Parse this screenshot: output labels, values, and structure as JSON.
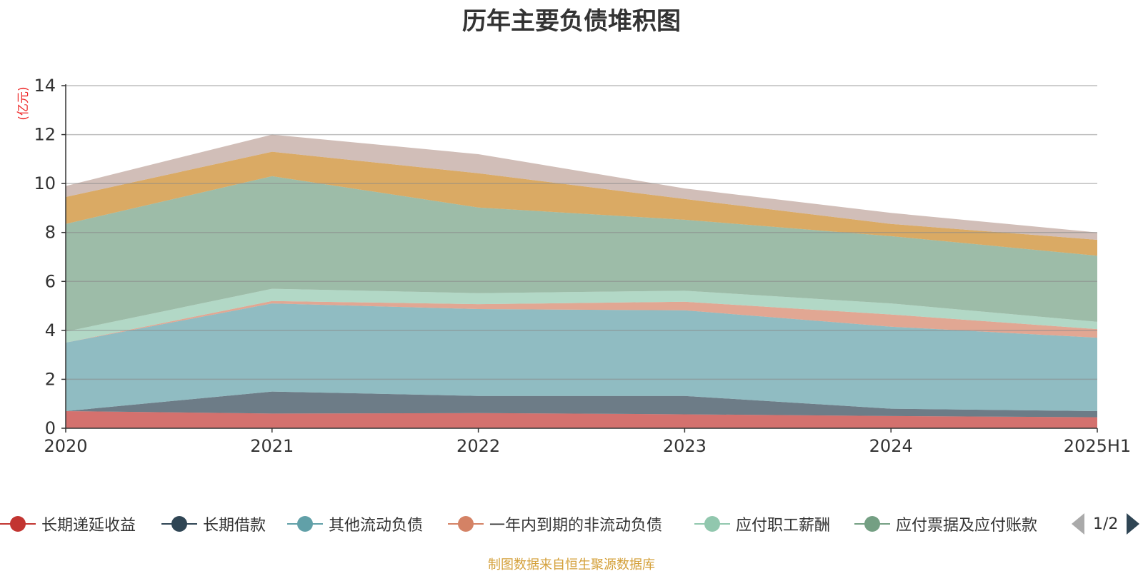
{
  "chart_data": {
    "type": "area",
    "stacked": true,
    "title": "历年主要负债堆积图",
    "ylabel": "(亿元)",
    "xlabel": "",
    "categories": [
      "2020",
      "2021",
      "2022",
      "2023",
      "2024",
      "2025H1"
    ],
    "ylim": [
      0,
      14
    ],
    "yticks": [
      0,
      2,
      4,
      6,
      8,
      10,
      12,
      14
    ],
    "grid": true,
    "series": [
      {
        "name": "长期递延收益",
        "color": "#c23531",
        "values": [
          0.7,
          0.6,
          0.62,
          0.57,
          0.5,
          0.45
        ]
      },
      {
        "name": "长期借款",
        "color": "#2f4554",
        "values": [
          0.0,
          0.9,
          0.7,
          0.75,
          0.3,
          0.25
        ]
      },
      {
        "name": "其他流动负债",
        "color": "#61a0a8",
        "values": [
          2.8,
          3.6,
          3.55,
          3.5,
          3.35,
          3.0
        ]
      },
      {
        "name": "一年内到期的非流动负债",
        "color": "#d48265",
        "values": [
          0.0,
          0.1,
          0.2,
          0.35,
          0.5,
          0.35
        ]
      },
      {
        "name": "应付职工薪酬",
        "color": "#91c7ae",
        "values": [
          0.45,
          0.5,
          0.45,
          0.45,
          0.45,
          0.3
        ]
      },
      {
        "name": "应付票据及应付账款",
        "color": "#749f83",
        "values": [
          4.4,
          4.6,
          3.5,
          2.9,
          2.75,
          2.7
        ]
      },
      {
        "name": "",
        "color": "#ca8622",
        "values": [
          1.1,
          1.0,
          1.4,
          0.85,
          0.5,
          0.65
        ]
      },
      {
        "name": "",
        "color": "#bda29a",
        "values": [
          0.45,
          0.7,
          0.78,
          0.43,
          0.45,
          0.3
        ]
      }
    ]
  },
  "legend": {
    "page_indicator": "1/2"
  },
  "source_text": "制图数据来自恒生聚源数据库"
}
